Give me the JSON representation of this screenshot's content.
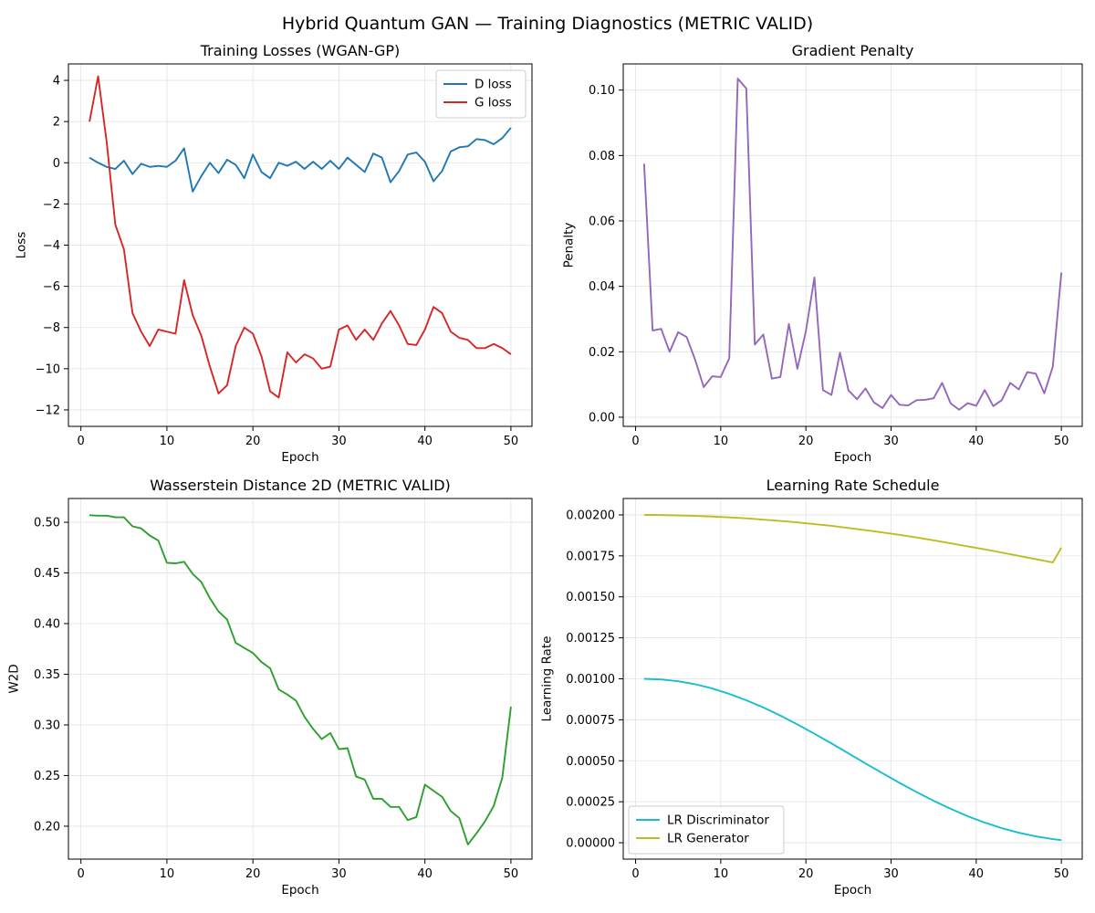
{
  "figure": {
    "title": "Hybrid Quantum GAN — Training Diagnostics (METRIC VALID)"
  },
  "chart_data": [
    {
      "type": "line",
      "title": "Training Losses (WGAN-GP)",
      "xlabel": "Epoch",
      "ylabel": "Loss",
      "xlim": [
        -1.45,
        52.45
      ],
      "ylim": [
        -12.8,
        4.8
      ],
      "xticks": [
        0,
        10,
        20,
        30,
        40,
        50
      ],
      "yticks": [
        -12,
        -10,
        -8,
        -6,
        -4,
        -2,
        0,
        2,
        4
      ],
      "grid": true,
      "legend": "top-right",
      "x": [
        1,
        2,
        3,
        4,
        5,
        6,
        7,
        8,
        9,
        10,
        11,
        12,
        13,
        14,
        15,
        16,
        17,
        18,
        19,
        20,
        21,
        22,
        23,
        24,
        25,
        26,
        27,
        28,
        29,
        30,
        31,
        32,
        33,
        34,
        35,
        36,
        37,
        38,
        39,
        40,
        41,
        42,
        43,
        44,
        45,
        46,
        47,
        48,
        49,
        50
      ],
      "series": [
        {
          "name": "D loss",
          "color": "#1f77b4",
          "values": [
            0.25,
            0.0,
            -0.2,
            -0.3,
            0.1,
            -0.55,
            -0.05,
            -0.2,
            -0.15,
            -0.2,
            0.1,
            0.7,
            -1.4,
            -0.65,
            0.0,
            -0.5,
            0.15,
            -0.1,
            -0.75,
            0.4,
            -0.45,
            -0.75,
            0.0,
            -0.15,
            0.05,
            -0.3,
            0.05,
            -0.3,
            0.1,
            -0.3,
            0.25,
            -0.1,
            -0.45,
            0.45,
            0.25,
            -0.95,
            -0.4,
            0.4,
            0.5,
            0.05,
            -0.9,
            -0.4,
            0.55,
            0.75,
            0.8,
            1.15,
            1.1,
            0.9,
            1.2,
            1.7
          ]
        },
        {
          "name": "G loss",
          "color": "#d62728",
          "values": [
            2.0,
            4.2,
            1.0,
            -3.0,
            -4.2,
            -7.3,
            -8.2,
            -8.9,
            -8.1,
            -8.2,
            -8.3,
            -5.7,
            -7.4,
            -8.4,
            -9.9,
            -11.2,
            -10.8,
            -8.9,
            -8.0,
            -8.3,
            -9.4,
            -11.1,
            -11.4,
            -9.2,
            -9.7,
            -9.3,
            -9.5,
            -10.0,
            -9.9,
            -8.1,
            -7.9,
            -8.6,
            -8.1,
            -8.6,
            -7.8,
            -7.2,
            -7.9,
            -8.8,
            -8.85,
            -8.1,
            -7.0,
            -7.3,
            -8.2,
            -8.5,
            -8.6,
            -9.0,
            -9.0,
            -8.8,
            -9.0,
            -9.3
          ]
        }
      ]
    },
    {
      "type": "line",
      "title": "Gradient Penalty",
      "xlabel": "Epoch",
      "ylabel": "Penalty",
      "xlim": [
        -1.45,
        52.45
      ],
      "ylim": [
        -0.0028,
        0.108
      ],
      "xticks": [
        0,
        10,
        20,
        30,
        40,
        50
      ],
      "yticks": [
        0.0,
        0.02,
        0.04,
        0.06,
        0.08,
        0.1
      ],
      "ytick_labels": [
        "0.00",
        "0.02",
        "0.04",
        "0.06",
        "0.08",
        "0.10"
      ],
      "grid": true,
      "x": [
        1,
        2,
        3,
        4,
        5,
        6,
        7,
        8,
        9,
        10,
        11,
        12,
        13,
        14,
        15,
        16,
        17,
        18,
        19,
        20,
        21,
        22,
        23,
        24,
        25,
        26,
        27,
        28,
        29,
        30,
        31,
        32,
        33,
        34,
        35,
        36,
        37,
        38,
        39,
        40,
        41,
        42,
        43,
        44,
        45,
        46,
        47,
        48,
        49,
        50
      ],
      "series": [
        {
          "name": "",
          "color": "#9467bd",
          "values": [
            0.0775,
            0.0265,
            0.027,
            0.02,
            0.026,
            0.0245,
            0.0175,
            0.0092,
            0.0125,
            0.0123,
            0.018,
            0.1035,
            0.1005,
            0.0222,
            0.0253,
            0.0118,
            0.0123,
            0.0285,
            0.0148,
            0.0263,
            0.0427,
            0.0083,
            0.0068,
            0.0197,
            0.0082,
            0.0055,
            0.0088,
            0.0045,
            0.0028,
            0.0068,
            0.0038,
            0.0036,
            0.0052,
            0.0053,
            0.0058,
            0.0105,
            0.0042,
            0.0023,
            0.0043,
            0.0035,
            0.0083,
            0.0034,
            0.0052,
            0.0105,
            0.0085,
            0.0138,
            0.0133,
            0.0073,
            0.0155,
            0.0442
          ]
        }
      ]
    },
    {
      "type": "line",
      "title": "Wasserstein Distance 2D (METRIC VALID)",
      "xlabel": "Epoch",
      "ylabel": "W2D",
      "xlim": [
        -1.45,
        52.45
      ],
      "ylim": [
        0.1675,
        0.5235
      ],
      "xticks": [
        0,
        10,
        20,
        30,
        40,
        50
      ],
      "yticks": [
        0.2,
        0.25,
        0.3,
        0.35,
        0.4,
        0.45,
        0.5
      ],
      "ytick_labels": [
        "0.20",
        "0.25",
        "0.30",
        "0.35",
        "0.40",
        "0.45",
        "0.50"
      ],
      "grid": true,
      "x": [
        1,
        2,
        3,
        4,
        5,
        6,
        7,
        8,
        9,
        10,
        11,
        12,
        13,
        14,
        15,
        16,
        17,
        18,
        19,
        20,
        21,
        22,
        23,
        24,
        25,
        26,
        27,
        28,
        29,
        30,
        31,
        32,
        33,
        34,
        35,
        36,
        37,
        38,
        39,
        40,
        41,
        42,
        43,
        44,
        45,
        46,
        47,
        48,
        49,
        50
      ],
      "series": [
        {
          "name": "",
          "color": "#2ca02c",
          "values": [
            0.507,
            0.5065,
            0.5065,
            0.505,
            0.505,
            0.496,
            0.494,
            0.487,
            0.482,
            0.46,
            0.4595,
            0.461,
            0.449,
            0.441,
            0.425,
            0.412,
            0.404,
            0.381,
            0.376,
            0.371,
            0.362,
            0.356,
            0.335,
            0.33,
            0.324,
            0.308,
            0.296,
            0.286,
            0.292,
            0.276,
            0.277,
            0.249,
            0.246,
            0.227,
            0.227,
            0.219,
            0.219,
            0.206,
            0.209,
            0.241,
            0.235,
            0.229,
            0.215,
            0.208,
            0.182,
            0.193,
            0.205,
            0.22,
            0.248,
            0.318
          ]
        }
      ]
    },
    {
      "type": "line",
      "title": "Learning Rate Schedule",
      "xlabel": "Epoch",
      "ylabel": "Learning Rate",
      "xlim": [
        -1.45,
        52.45
      ],
      "ylim": [
        -0.0001,
        0.0021
      ],
      "xticks": [
        0,
        10,
        20,
        30,
        40,
        50
      ],
      "yticks": [
        0,
        0.00025,
        0.0005,
        0.00075,
        0.001,
        0.00125,
        0.0015,
        0.00175,
        0.002
      ],
      "ytick_labels": [
        "0.00000",
        "0.00025",
        "0.00050",
        "0.00075",
        "0.00100",
        "0.00125",
        "0.00150",
        "0.00175",
        "0.00200"
      ],
      "grid": true,
      "legend": "bottom-left",
      "x": [
        1,
        3,
        5,
        7,
        9,
        11,
        13,
        15,
        17,
        19,
        21,
        23,
        25,
        27,
        29,
        31,
        33,
        35,
        37,
        39,
        41,
        43,
        45,
        47,
        49,
        50
      ],
      "series": [
        {
          "name": "LR Discriminator",
          "color": "#17becf",
          "values": [
            0.001,
            0.000996,
            0.000985,
            0.000967,
            0.000941,
            0.000908,
            0.000869,
            0.000825,
            0.000776,
            0.000722,
            0.000665,
            0.000606,
            0.000545,
            0.000484,
            0.000424,
            0.000365,
            0.000309,
            0.000256,
            0.000207,
            0.000162,
            0.000123,
            8.9e-05,
            6.1e-05,
            3.9e-05,
            2.2e-05,
            1.6e-05
          ]
        },
        {
          "name": "LR Generator",
          "color": "#bcbd22",
          "values": [
            0.002,
            0.001999,
            0.001997,
            0.001994,
            0.00199,
            0.001985,
            0.001979,
            0.001971,
            0.001963,
            0.001954,
            0.001944,
            0.001933,
            0.00192,
            0.001907,
            0.001893,
            0.001878,
            0.001862,
            0.001845,
            0.001827,
            0.001808,
            0.00179,
            0.00177,
            0.00175,
            0.00173,
            0.00171,
            0.0018
          ]
        }
      ]
    }
  ]
}
